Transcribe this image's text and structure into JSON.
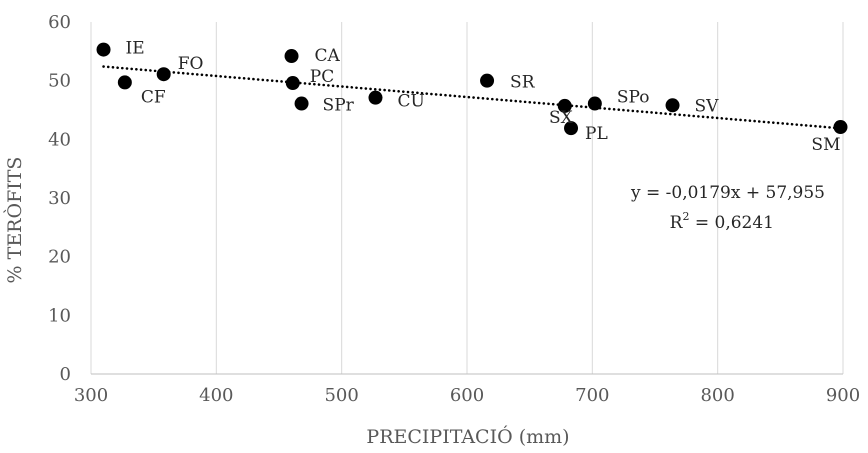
{
  "chart_data": {
    "type": "scatter",
    "xlabel": "PRECIPITACIÓ (mm)",
    "ylabel": "% TERÒFITS",
    "xlim": [
      300,
      900
    ],
    "ylim": [
      0,
      60
    ],
    "xticks": [
      300,
      400,
      500,
      600,
      700,
      800,
      900
    ],
    "yticks": [
      0,
      10,
      20,
      30,
      40,
      50,
      60
    ],
    "grid": "vertical",
    "marker_color": "#000000",
    "trendline": {
      "style": "dotted",
      "slope": -0.0179,
      "intercept": 57.955,
      "equation": "y = -0,0179x + 57,955",
      "r2_prefix": "R",
      "r2_exp": "2",
      "r2_suffix": " = 0,6241"
    },
    "points": [
      {
        "label": "IE",
        "x": 310,
        "y": 55.3
      },
      {
        "label": "CF",
        "x": 327,
        "y": 49.7
      },
      {
        "label": "FO",
        "x": 358,
        "y": 51.1
      },
      {
        "label": "CA",
        "x": 460,
        "y": 54.2
      },
      {
        "label": "PC",
        "x": 461,
        "y": 49.6
      },
      {
        "label": "SPr",
        "x": 468,
        "y": 46.1
      },
      {
        "label": "CU",
        "x": 527,
        "y": 47.1
      },
      {
        "label": "SR",
        "x": 616,
        "y": 50.0
      },
      {
        "label": "SX",
        "x": 678,
        "y": 45.7
      },
      {
        "label": "PL",
        "x": 683,
        "y": 41.9
      },
      {
        "label": "SPo",
        "x": 702,
        "y": 46.1
      },
      {
        "label": "SV",
        "x": 764,
        "y": 45.8
      },
      {
        "label": "SM",
        "x": 898,
        "y": 42.1
      }
    ]
  }
}
